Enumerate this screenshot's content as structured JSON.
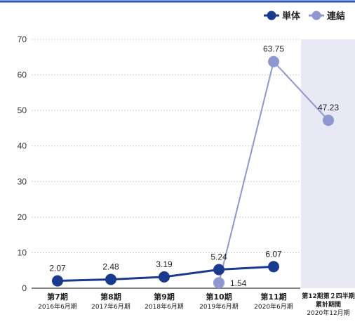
{
  "chart_data": {
    "type": "line",
    "categories": [
      {
        "label": "第7期",
        "sub": [
          "2016年6月期"
        ]
      },
      {
        "label": "第8期",
        "sub": [
          "2017年6月期"
        ]
      },
      {
        "label": "第9期",
        "sub": [
          "2018年6月期"
        ]
      },
      {
        "label": "第10期",
        "sub": [
          "2019年6月期"
        ]
      },
      {
        "label": "第11期",
        "sub": [
          "2020年6月期"
        ]
      },
      {
        "label": "",
        "sub": [
          "第12期第２四半期",
          "累計期間",
          "2020年12月期"
        ]
      }
    ],
    "series": [
      {
        "name": "単体",
        "color": "#1a3a8f",
        "values": [
          2.07,
          2.48,
          3.19,
          5.24,
          6.07,
          null
        ],
        "labels": [
          "2.07",
          "2.48",
          "3.19",
          "5.24",
          "6.07",
          ""
        ]
      },
      {
        "name": "連結",
        "color": "#8e97d0",
        "values": [
          null,
          null,
          null,
          1.54,
          63.75,
          47.23
        ],
        "labels": [
          "",
          "",
          "",
          "1.54",
          "63.75",
          "47.23"
        ]
      }
    ],
    "connected": [
      true,
      true
    ],
    "ylim": [
      0,
      70
    ],
    "yticks": [
      0,
      10,
      20,
      30,
      40,
      50,
      60,
      70
    ],
    "highlight_last_category": true,
    "highlight_color": "#e8e9f5",
    "legend_position": "top-right",
    "grid": true,
    "title": "",
    "xlabel": "",
    "ylabel": ""
  }
}
